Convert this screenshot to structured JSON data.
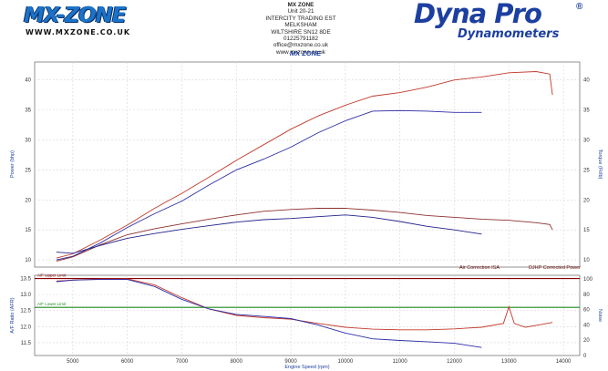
{
  "header": {
    "left_logo": "MX-ZONE",
    "left_url": "WWW.MXZONE.CO.UK",
    "address_lines": [
      "MX ZONE",
      "Unit 20-21",
      "INTERCITY TRADING EST",
      "MELKSHAM",
      "WILTSHIRE SN12 8DE",
      "01225791182",
      "office@mxzone.co.uk",
      "www.mxzone.co.uk"
    ],
    "right_logo": "Dyna Pro",
    "right_logo_mark": "®",
    "right_logo_sub": "Dynamometers"
  },
  "chart_data": [
    {
      "type": "line",
      "title": "MX ZONE",
      "xlabel": "",
      "ylabel": "Power (bhp)",
      "ylabel_right": "Torque (Ft/lb)",
      "xlim": [
        4300,
        14300
      ],
      "ylim": [
        8.8,
        43
      ],
      "yticks": [
        10,
        15,
        20,
        25,
        30,
        35,
        40
      ],
      "xticks": [
        5000,
        6000,
        7000,
        8000,
        9000,
        10000,
        11000,
        12000,
        13000,
        14000
      ],
      "grid": true,
      "annotations": [
        "Air Correction ISA",
        "DJHP Corrected Power"
      ],
      "series": [
        {
          "role": "power",
          "color": "#c0392b",
          "x": [
            4700,
            5000,
            5500,
            6000,
            6500,
            7000,
            7500,
            8000,
            8500,
            9000,
            9500,
            10000,
            10500,
            11000,
            11500,
            12000,
            12500,
            13000,
            13500,
            13750,
            13800
          ],
          "values": [
            10.3,
            11.0,
            13.3,
            15.8,
            18.6,
            21.1,
            23.8,
            26.6,
            29.2,
            31.8,
            34.0,
            35.8,
            37.3,
            37.9,
            38.8,
            40.0,
            40.5,
            41.2,
            41.4,
            41.0,
            37.5
          ]
        },
        {
          "role": "power",
          "color": "#2c2ca8",
          "x": [
            4700,
            5000,
            5500,
            6000,
            6500,
            7000,
            7500,
            8000,
            8500,
            9000,
            9500,
            10000,
            10500,
            11000,
            11500,
            12000,
            12500
          ],
          "values": [
            10.0,
            10.6,
            12.8,
            15.4,
            17.7,
            19.8,
            22.5,
            25.0,
            26.8,
            28.8,
            31.2,
            33.2,
            34.8,
            34.9,
            34.8,
            34.6,
            34.6
          ]
        },
        {
          "role": "torque",
          "color": "#8e3030",
          "x": [
            4700,
            5000,
            5500,
            6000,
            6500,
            7000,
            7500,
            8000,
            8500,
            9000,
            9500,
            10000,
            10500,
            11000,
            11500,
            12000,
            12500,
            13000,
            13500,
            13750,
            13800
          ],
          "values": [
            9.8,
            10.5,
            12.5,
            14.2,
            15.2,
            16.0,
            16.8,
            17.5,
            18.1,
            18.4,
            18.6,
            18.6,
            18.3,
            17.9,
            17.4,
            17.1,
            16.8,
            16.6,
            16.2,
            15.9,
            15.0
          ]
        },
        {
          "role": "torque",
          "color": "#23238c",
          "x": [
            4700,
            5000,
            5500,
            6000,
            6500,
            7000,
            7500,
            8000,
            8500,
            9000,
            9500,
            10000,
            10500,
            11000,
            11500,
            12000,
            12500
          ],
          "values": [
            11.3,
            11.1,
            12.4,
            13.6,
            14.4,
            15.1,
            15.7,
            16.3,
            16.7,
            16.9,
            17.2,
            17.5,
            17.1,
            16.4,
            15.6,
            15.0,
            14.3
          ]
        }
      ]
    },
    {
      "type": "line",
      "title": "",
      "xlabel": "Engine Speed (rpm)",
      "ylabel": "A/F Ratio (AFR)",
      "ylabel_right": "Noise",
      "xlim": [
        4300,
        14300
      ],
      "ylim": [
        11.1,
        13.6
      ],
      "yticks": [
        11.5,
        12.0,
        12.5,
        13.0,
        13.5
      ],
      "yticks_right": [
        0,
        20,
        40,
        60,
        80,
        100
      ],
      "xticks": [
        5000,
        6000,
        7000,
        8000,
        9000,
        10000,
        11000,
        12000,
        13000,
        14000
      ],
      "grid": true,
      "limits": [
        {
          "label": "A/F Upper Limit",
          "value": 13.5,
          "color": "#8b0000"
        },
        {
          "label": "A/F Lower Limit",
          "value": 12.6,
          "color": "#1f8a1f"
        }
      ],
      "series": [
        {
          "role": "afr",
          "color": "#c0392b",
          "x": [
            4700,
            5000,
            5500,
            6000,
            6500,
            7000,
            7500,
            8000,
            8500,
            9000,
            9500,
            10000,
            10500,
            11000,
            11500,
            12000,
            12500,
            12900,
            13000,
            13100,
            13300,
            13600,
            13800
          ],
          "values": [
            13.42,
            13.45,
            13.48,
            13.49,
            13.3,
            12.9,
            12.55,
            12.35,
            12.28,
            12.23,
            12.1,
            11.98,
            11.92,
            11.9,
            11.9,
            11.93,
            11.98,
            12.1,
            12.62,
            12.1,
            11.98,
            12.07,
            12.13
          ]
        },
        {
          "role": "afr",
          "color": "#2c2ca8",
          "x": [
            4700,
            5000,
            5500,
            6000,
            6500,
            7000,
            7500,
            8000,
            8500,
            9000,
            9500,
            10000,
            10500,
            11000,
            11500,
            12000,
            12500
          ],
          "values": [
            13.4,
            13.45,
            13.47,
            13.47,
            13.25,
            12.85,
            12.55,
            12.38,
            12.32,
            12.25,
            12.05,
            11.8,
            11.62,
            11.57,
            11.53,
            11.48,
            11.35
          ]
        }
      ]
    }
  ]
}
